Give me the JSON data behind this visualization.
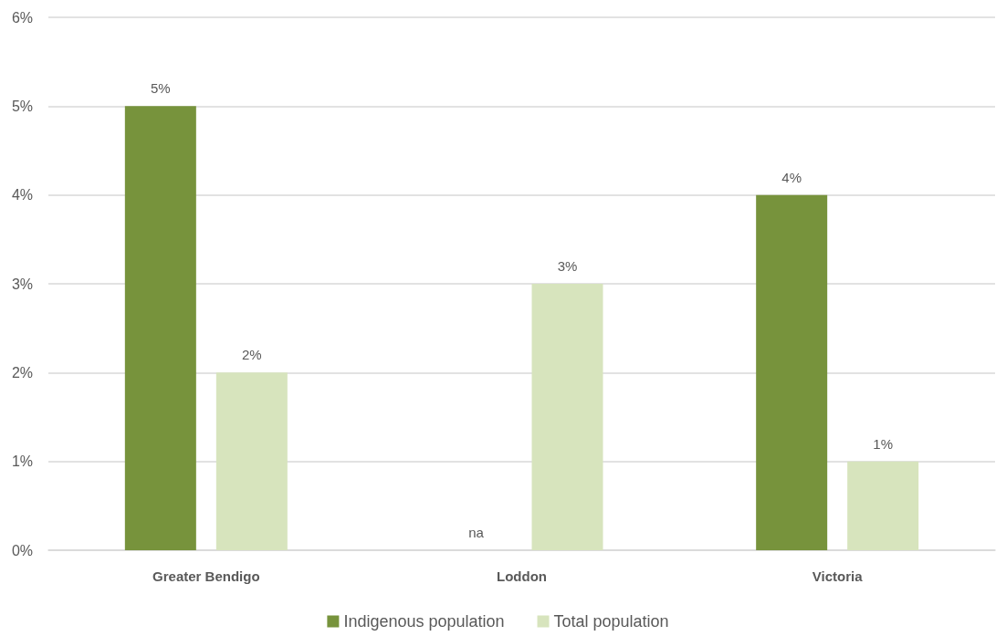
{
  "chart_data": {
    "type": "bar",
    "categories": [
      "Greater Bendigo",
      "Loddon",
      "Victoria"
    ],
    "series": [
      {
        "name": "Indigenous population",
        "color": "#77933c",
        "values": [
          5,
          null,
          4
        ],
        "value_labels": [
          "5%",
          "na",
          "4%"
        ]
      },
      {
        "name": "Total population",
        "color": "#d7e4bd",
        "values": [
          2,
          3,
          1
        ],
        "value_labels": [
          "2%",
          "3%",
          "1%"
        ]
      }
    ],
    "ylim": [
      0,
      6
    ],
    "yticks": [
      {
        "value": 0,
        "label": "0%"
      },
      {
        "value": 1,
        "label": "1%"
      },
      {
        "value": 2,
        "label": "2%"
      },
      {
        "value": 3,
        "label": "3%"
      },
      {
        "value": 4,
        "label": "4%"
      },
      {
        "value": 5,
        "label": "5%"
      },
      {
        "value": 6,
        "label": "6%"
      }
    ],
    "grid": "y",
    "legend": "bottom"
  }
}
